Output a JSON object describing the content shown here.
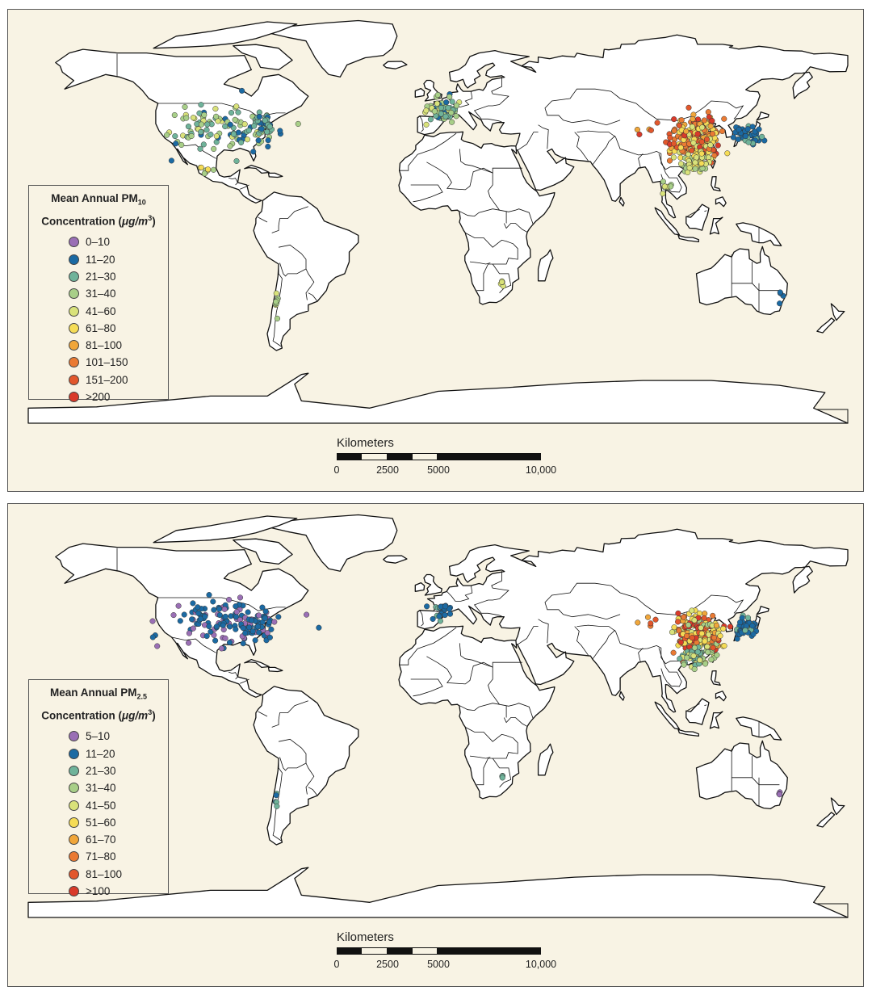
{
  "colors": {
    "panel_bg": "#f8f3e4",
    "border": "#555555",
    "land_outline": "#111111"
  },
  "maps": [
    {
      "legend": {
        "title_line1_prefix": "Mean Annual PM",
        "title_line1_sub": "10",
        "title_line2_prefix": "Concentration (",
        "title_line2_unit": "μg/m",
        "title_line2_sup": "3",
        "title_line2_suffix": ")",
        "items": [
          {
            "label": "0–10",
            "color": "#9a6fb5"
          },
          {
            "label": "11–20",
            "color": "#1b6aa3"
          },
          {
            "label": "21–30",
            "color": "#6fb39a"
          },
          {
            "label": "31–40",
            "color": "#a8cf88"
          },
          {
            "label": "41–60",
            "color": "#d9e27a"
          },
          {
            "label": "61–80",
            "color": "#f5dc56"
          },
          {
            "label": "81–100",
            "color": "#f0a63a"
          },
          {
            "label": "101–150",
            "color": "#ea7a33"
          },
          {
            "label": "151–200",
            "color": "#e2572c"
          },
          {
            "label": ">200",
            "color": "#d93a2a"
          }
        ]
      },
      "scale": {
        "title": "Kilometers",
        "ticks": [
          "0",
          "2500",
          "5000",
          "10,000"
        ]
      },
      "city_clusters": [
        {
          "region": "United States",
          "lon": -95,
          "lat": 39,
          "spread": [
            22,
            9
          ],
          "count": 110,
          "classes": [
            1,
            2,
            2,
            3,
            3,
            4
          ]
        },
        {
          "region": "US East Coast",
          "lon": -76,
          "lat": 40,
          "spread": [
            5,
            5
          ],
          "count": 30,
          "classes": [
            1,
            1,
            2,
            2
          ]
        },
        {
          "region": "Mexico",
          "lon": -101,
          "lat": 21,
          "spread": [
            4,
            3
          ],
          "count": 8,
          "classes": [
            3,
            4,
            5
          ]
        },
        {
          "region": "Europe",
          "lon": 2,
          "lat": 46,
          "spread": [
            8,
            6
          ],
          "count": 70,
          "classes": [
            2,
            2,
            3,
            3,
            4,
            1
          ]
        },
        {
          "region": "China",
          "lon": 114,
          "lat": 34,
          "spread": [
            9,
            8
          ],
          "count": 260,
          "classes": [
            4,
            5,
            5,
            6,
            7,
            7,
            8,
            9
          ]
        },
        {
          "region": "South China",
          "lon": 113,
          "lat": 24,
          "spread": [
            6,
            4
          ],
          "count": 60,
          "classes": [
            3,
            4,
            4,
            5
          ]
        },
        {
          "region": "Japan / Korea",
          "lon": 136,
          "lat": 36,
          "spread": [
            5,
            4
          ],
          "count": 45,
          "classes": [
            1,
            1,
            1,
            2
          ]
        },
        {
          "region": "Thailand",
          "lon": 100,
          "lat": 14,
          "spread": [
            2,
            3
          ],
          "count": 10,
          "classes": [
            3,
            4
          ]
        },
        {
          "region": "Chile",
          "lon": -71,
          "lat": -35,
          "spread": [
            1,
            5
          ],
          "count": 8,
          "classes": [
            3,
            4
          ]
        },
        {
          "region": "South Africa",
          "lon": 28,
          "lat": -26,
          "spread": [
            2,
            1
          ],
          "count": 5,
          "classes": [
            4,
            5
          ]
        },
        {
          "region": "Australia",
          "lon": 150,
          "lat": -33,
          "spread": [
            2,
            3
          ],
          "count": 4,
          "classes": [
            1
          ]
        },
        {
          "region": "Western China",
          "lon": 95,
          "lat": 38,
          "spread": [
            12,
            3
          ],
          "count": 8,
          "classes": [
            6,
            8,
            9
          ]
        }
      ]
    },
    {
      "legend": {
        "title_line1_prefix": "Mean Annual PM",
        "title_line1_sub": "2.5",
        "title_line2_prefix": "Concentration (",
        "title_line2_unit": "μg/m",
        "title_line2_sup": "3",
        "title_line2_suffix": ")",
        "items": [
          {
            "label": "5–10",
            "color": "#9a6fb5"
          },
          {
            "label": "11–20",
            "color": "#1b6aa3"
          },
          {
            "label": "21–30",
            "color": "#6fb39a"
          },
          {
            "label": "31–40",
            "color": "#a8cf88"
          },
          {
            "label": "41–50",
            "color": "#d9e27a"
          },
          {
            "label": "51–60",
            "color": "#f5dc56"
          },
          {
            "label": "61–70",
            "color": "#f0a63a"
          },
          {
            "label": "71–80",
            "color": "#ea7a33"
          },
          {
            "label": "81–100",
            "color": "#e2572c"
          },
          {
            "label": ">100",
            "color": "#d93a2a"
          }
        ]
      },
      "scale": {
        "title": "Kilometers",
        "ticks": [
          "0",
          "2500",
          "5000",
          "10,000"
        ]
      },
      "city_clusters": [
        {
          "region": "United States",
          "lon": -95,
          "lat": 39,
          "spread": [
            22,
            9
          ],
          "count": 110,
          "classes": [
            0,
            0,
            1,
            1,
            1
          ]
        },
        {
          "region": "US East Coast",
          "lon": -80,
          "lat": 38,
          "spread": [
            7,
            5
          ],
          "count": 45,
          "classes": [
            1,
            1,
            1,
            0
          ]
        },
        {
          "region": "Europe",
          "lon": 2,
          "lat": 44,
          "spread": [
            6,
            4
          ],
          "count": 25,
          "classes": [
            1,
            1,
            2
          ]
        },
        {
          "region": "China",
          "lon": 114,
          "lat": 34,
          "spread": [
            9,
            8
          ],
          "count": 260,
          "classes": [
            3,
            4,
            4,
            5,
            5,
            6,
            7,
            8,
            9
          ]
        },
        {
          "region": "South China",
          "lon": 113,
          "lat": 24,
          "spread": [
            6,
            4
          ],
          "count": 60,
          "classes": [
            2,
            2,
            3,
            3,
            4
          ]
        },
        {
          "region": "Japan / Korea",
          "lon": 136,
          "lat": 36,
          "spread": [
            5,
            4
          ],
          "count": 40,
          "classes": [
            1,
            1,
            1,
            2
          ]
        },
        {
          "region": "Chile",
          "lon": -71,
          "lat": -35,
          "spread": [
            1,
            4
          ],
          "count": 5,
          "classes": [
            2,
            1
          ]
        },
        {
          "region": "South Africa",
          "lon": 28,
          "lat": -26,
          "spread": [
            2,
            1
          ],
          "count": 4,
          "classes": [
            2,
            3
          ]
        },
        {
          "region": "Australia",
          "lon": 150,
          "lat": -33,
          "spread": [
            2,
            3
          ],
          "count": 3,
          "classes": [
            0
          ]
        },
        {
          "region": "Western China",
          "lon": 95,
          "lat": 38,
          "spread": [
            12,
            3
          ],
          "count": 5,
          "classes": [
            6,
            8,
            9
          ]
        }
      ]
    }
  ]
}
